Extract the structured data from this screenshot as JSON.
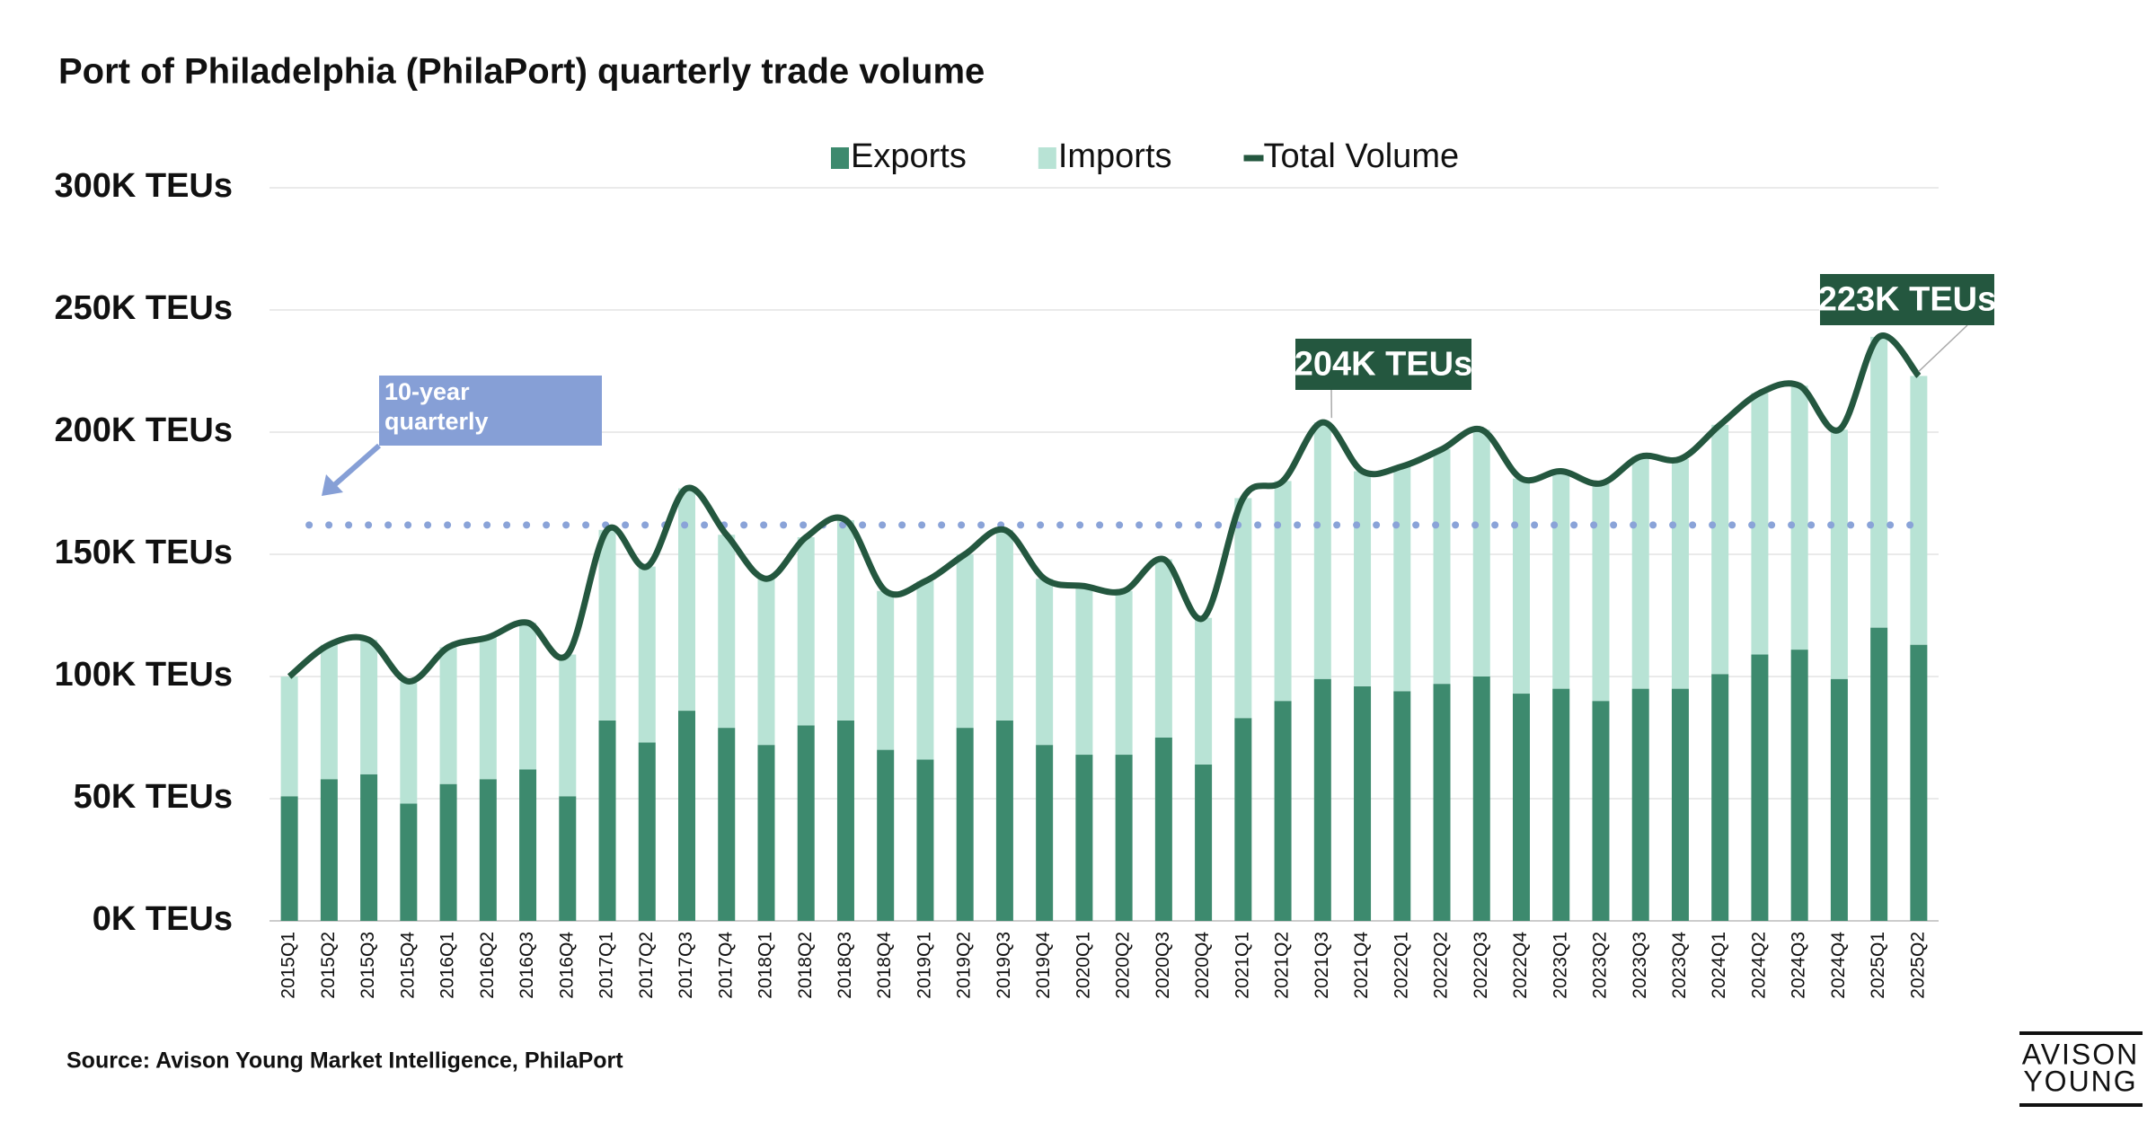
{
  "chart_data": {
    "type": "bar",
    "title": "Port of Philadelphia (PhilaPort) quarterly trade volume",
    "categories": [
      "2015Q1",
      "2015Q2",
      "2015Q3",
      "2015Q4",
      "2016Q1",
      "2016Q2",
      "2016Q3",
      "2016Q4",
      "2017Q1",
      "2017Q2",
      "2017Q3",
      "2017Q4",
      "2018Q1",
      "2018Q2",
      "2018Q3",
      "2018Q4",
      "2019Q1",
      "2019Q2",
      "2019Q3",
      "2019Q4",
      "2020Q1",
      "2020Q2",
      "2020Q3",
      "2020Q4",
      "2021Q1",
      "2021Q2",
      "2021Q3",
      "2021Q4",
      "2022Q1",
      "2022Q2",
      "2022Q3",
      "2022Q4",
      "2023Q1",
      "2023Q2",
      "2023Q3",
      "2023Q4",
      "2024Q1",
      "2024Q2",
      "2024Q3",
      "2024Q4",
      "2025Q1",
      "2025Q2"
    ],
    "series": [
      {
        "name": "Exports",
        "color": "#3d8a6e",
        "stack": true,
        "values": [
          51,
          58,
          60,
          48,
          56,
          58,
          62,
          51,
          82,
          73,
          86,
          79,
          72,
          80,
          82,
          70,
          66,
          79,
          82,
          72,
          68,
          68,
          75,
          64,
          83,
          90,
          99,
          96,
          94,
          97,
          100,
          93,
          95,
          90,
          95,
          95,
          101,
          109,
          111,
          99,
          120,
          113
        ]
      },
      {
        "name": "Imports",
        "color": "#b8e3d5",
        "stack": true,
        "values": [
          49,
          55,
          55,
          50,
          56,
          58,
          60,
          58,
          78,
          72,
          91,
          79,
          68,
          77,
          82,
          65,
          73,
          71,
          78,
          68,
          69,
          67,
          73,
          60,
          90,
          90,
          105,
          88,
          92,
          96,
          101,
          88,
          89,
          89,
          95,
          94,
          102,
          107,
          108,
          102,
          119,
          110
        ]
      },
      {
        "name": "Total Volume",
        "color": "#24573f",
        "line": true,
        "values": [
          100,
          113,
          115,
          98,
          112,
          116,
          122,
          109,
          160,
          145,
          177,
          158,
          140,
          157,
          164,
          135,
          139,
          150,
          160,
          140,
          137,
          135,
          148,
          124,
          173,
          180,
          204,
          184,
          186,
          193,
          201,
          181,
          184,
          179,
          190,
          189,
          203,
          216,
          219,
          201,
          239,
          223
        ]
      }
    ],
    "ylim": [
      0,
      300
    ],
    "yticks": [
      {
        "value": 0,
        "label": "0K TEUs"
      },
      {
        "value": 50,
        "label": "50K TEUs"
      },
      {
        "value": 100,
        "label": "100K TEUs"
      },
      {
        "value": 150,
        "label": "150K TEUs"
      },
      {
        "value": 200,
        "label": "200K TEUs"
      },
      {
        "value": 250,
        "label": "250K TEUs"
      },
      {
        "value": 300,
        "label": "300K TEUs"
      }
    ],
    "grid": true,
    "reference_line": {
      "label": "10-year quarterly",
      "value": 162,
      "color": "#8aa3d8"
    },
    "annotations": [
      {
        "text": "204K TEUs",
        "category": "2021Q3"
      },
      {
        "text": "223K TEUs",
        "category": "2025Q2"
      }
    ],
    "source": "Source: Avison Young Market Intelligence, PhilaPort",
    "logo": [
      "AVISON",
      "YOUNG"
    ]
  }
}
